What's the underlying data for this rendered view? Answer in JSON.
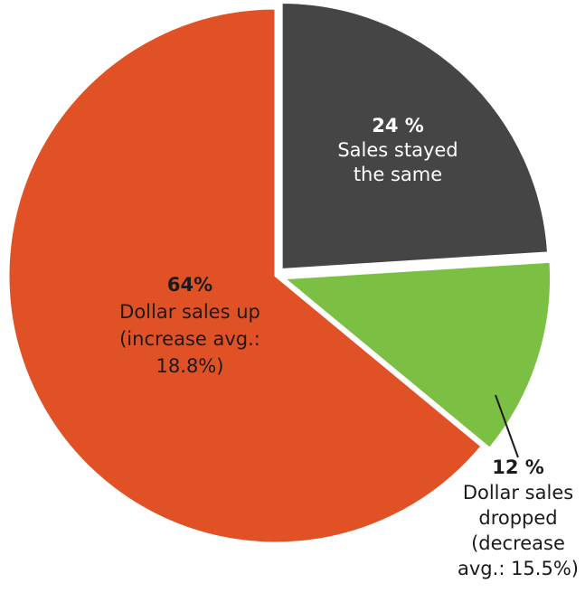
{
  "chart_data": {
    "type": "pie",
    "title": "",
    "slices": [
      {
        "value": 24,
        "percent_label": "24 %",
        "lines": [
          "Sales stayed",
          "the same"
        ],
        "color": "#454545",
        "text_color": "#ffffff"
      },
      {
        "value": 12,
        "percent_label": "12 %",
        "lines": [
          "Dollar sales",
          "dropped",
          "(decrease",
          "avg.: 15.5%)"
        ],
        "color": "#7bc043",
        "text_color": "#1a1a1a"
      },
      {
        "value": 64,
        "percent_label": "64%",
        "lines": [
          "Dollar sales up",
          "(increase avg.:",
          "18.8%)"
        ],
        "color": "#e05225",
        "text_color": "#1a1a1a"
      }
    ],
    "background": "#ffffff",
    "separator_color": "#ffffff",
    "start_angle_deg": 0,
    "direction": "clockwise",
    "exploded": true,
    "legend": "none"
  }
}
